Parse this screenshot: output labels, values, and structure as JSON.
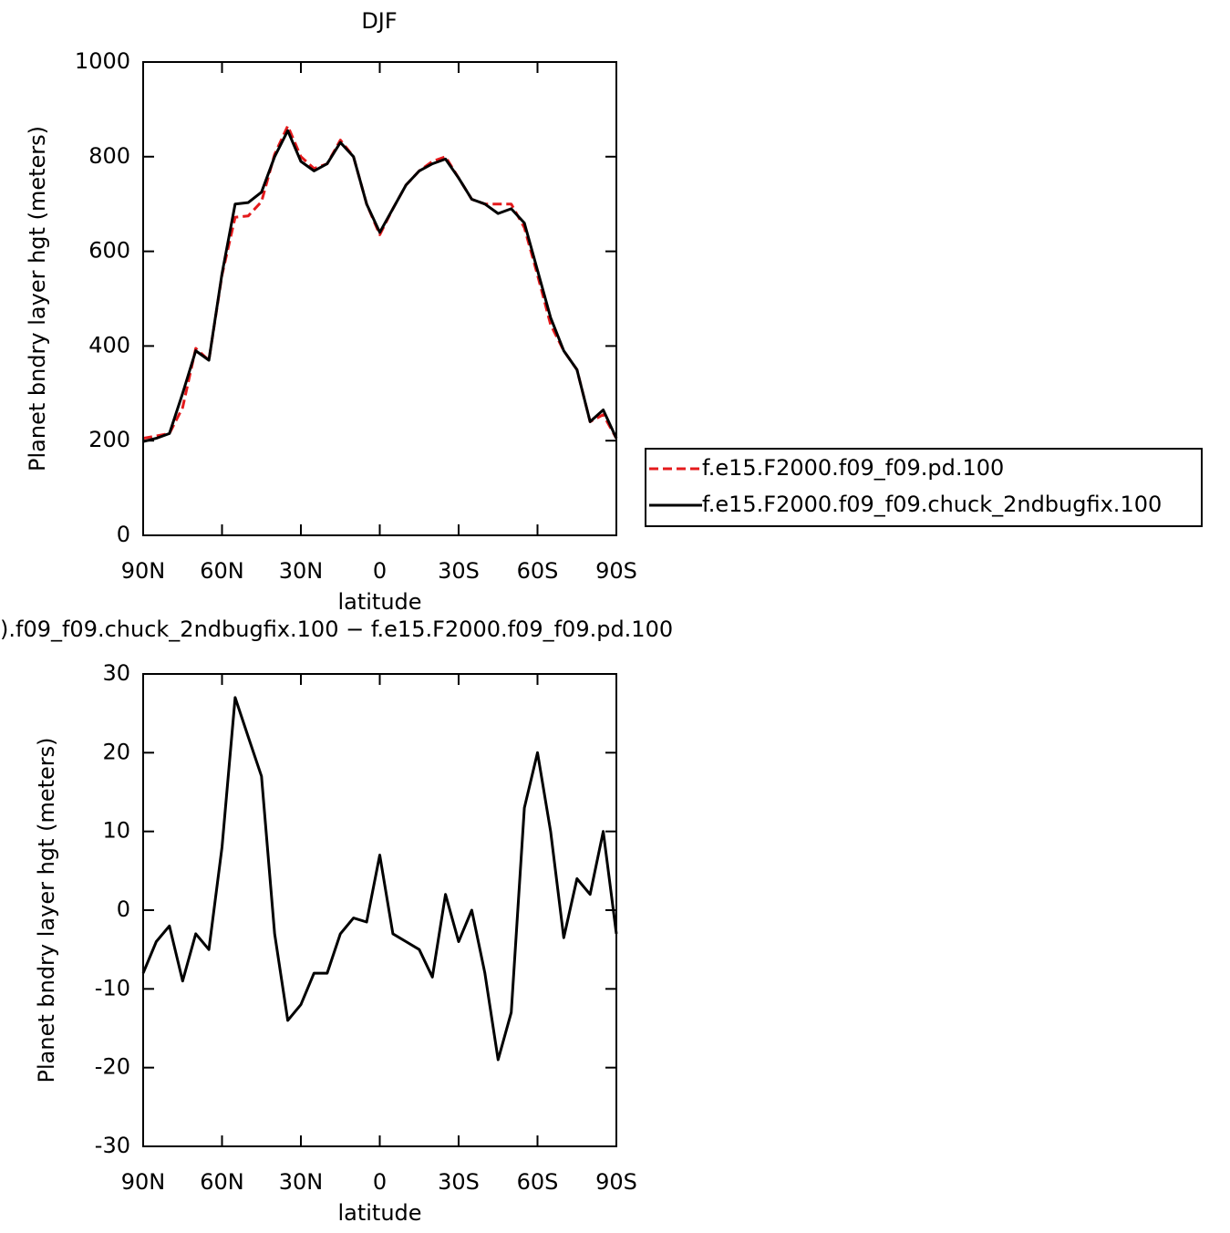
{
  "chart_data": [
    {
      "type": "line",
      "title": "DJF",
      "xlabel": "latitude",
      "ylabel": "Planet bndry layer hgt (meters)",
      "x": [
        90,
        85,
        80,
        75,
        70,
        65,
        60,
        55,
        50,
        45,
        40,
        35,
        30,
        25,
        20,
        15,
        10,
        5,
        0,
        -5,
        -10,
        -15,
        -20,
        -25,
        -30,
        -35,
        -40,
        -45,
        -50,
        -55,
        -60,
        -65,
        -70,
        -75,
        -80,
        -85,
        -90
      ],
      "xlim": [
        90,
        -90
      ],
      "xticks": [
        {
          "value": 90,
          "label": "90N"
        },
        {
          "value": 60,
          "label": "60N"
        },
        {
          "value": 30,
          "label": "30N"
        },
        0,
        {
          "value": -30,
          "label": "30S"
        },
        {
          "value": -60,
          "label": "60S"
        },
        {
          "value": -90,
          "label": "90S"
        }
      ],
      "ylim": [
        0,
        1000
      ],
      "yticks": [
        0,
        200,
        400,
        600,
        800,
        1000
      ],
      "legend": "right",
      "series": [
        {
          "name": "f.e15.F2000.f09_f09.pd.100",
          "color": "#e41a1c",
          "line_style": "dashed",
          "values": [
            205,
            210,
            215,
            270,
            395,
            370,
            550,
            672,
            675,
            705,
            805,
            865,
            800,
            775,
            785,
            835,
            800,
            700,
            635,
            690,
            740,
            770,
            790,
            800,
            755,
            710,
            700,
            700,
            700,
            650,
            550,
            445,
            390,
            350,
            240,
            255,
            205
          ]
        },
        {
          "name": "f.e15.F2000.f09_f09.chuck_2ndbugfix.100",
          "color": "#000000",
          "line_style": "solid",
          "values": [
            198,
            205,
            215,
            300,
            390,
            370,
            553,
            700,
            703,
            725,
            800,
            855,
            790,
            770,
            785,
            830,
            800,
            700,
            640,
            690,
            740,
            770,
            785,
            795,
            755,
            710,
            700,
            680,
            690,
            660,
            560,
            460,
            390,
            350,
            240,
            265,
            205
          ]
        }
      ]
    },
    {
      "type": "line",
      "title": ").f09_f09.chuck_2ndbugfix.100 − f.e15.F2000.f09_f09.pd.100",
      "xlabel": "latitude",
      "ylabel": "Planet bndry layer hgt (meters)",
      "x": [
        90,
        85,
        80,
        75,
        70,
        65,
        60,
        55,
        50,
        45,
        40,
        35,
        30,
        25,
        20,
        15,
        10,
        5,
        0,
        -5,
        -10,
        -15,
        -20,
        -25,
        -30,
        -35,
        -40,
        -45,
        -50,
        -55,
        -60,
        -65,
        -70,
        -75,
        -80,
        -85,
        -90
      ],
      "xlim": [
        90,
        -90
      ],
      "xticks": [
        {
          "value": 90,
          "label": "90N"
        },
        {
          "value": 60,
          "label": "60N"
        },
        {
          "value": 30,
          "label": "30N"
        },
        0,
        {
          "value": -30,
          "label": "30S"
        },
        {
          "value": -60,
          "label": "60S"
        },
        {
          "value": -90,
          "label": "90S"
        }
      ],
      "ylim": [
        -30,
        30
      ],
      "yticks": [
        -30,
        -20,
        -10,
        0,
        10,
        20,
        30
      ],
      "series": [
        {
          "color": "#000000",
          "line_style": "solid",
          "values": [
            -8,
            -4,
            -2,
            -9,
            -3,
            -5,
            8,
            27,
            22,
            17,
            -3,
            -14,
            -12,
            -8,
            -8,
            -3,
            -1,
            -1.5,
            7,
            -3,
            -4,
            -5,
            -8.5,
            2,
            -4,
            0,
            -8,
            -19,
            -13,
            13,
            20,
            10,
            -3.5,
            4,
            2,
            10,
            -3
          ]
        }
      ]
    }
  ]
}
